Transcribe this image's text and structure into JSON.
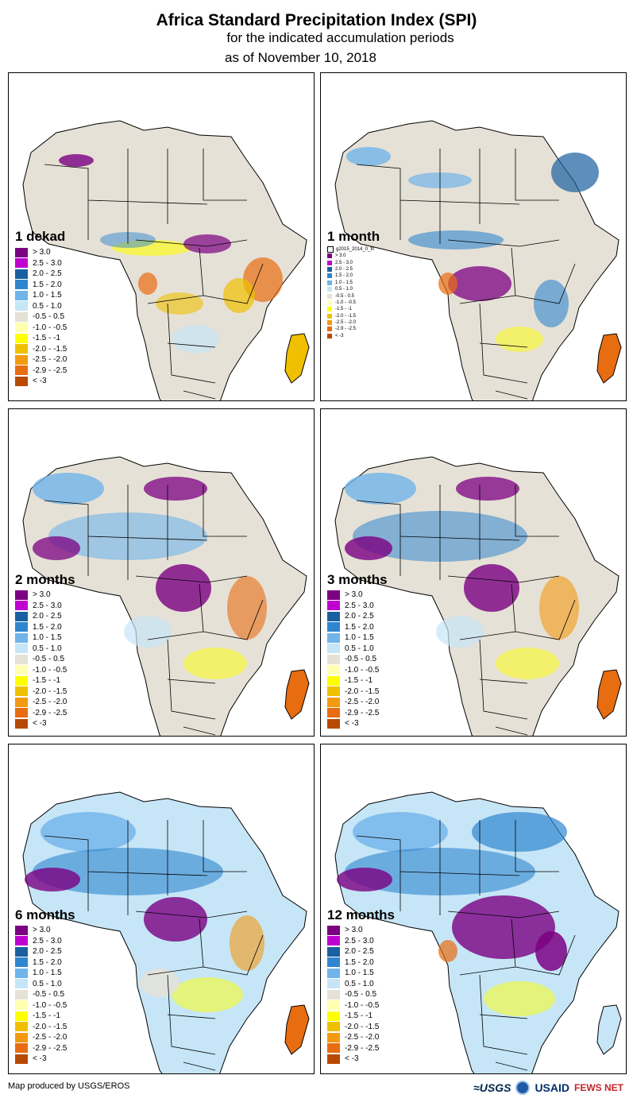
{
  "title": {
    "line1": "Africa Standard Precipitation Index (SPI)",
    "line2": "for the indicated accumulation periods",
    "line3": "as of November 10, 2018"
  },
  "legend": [
    {
      "label": "> 3.0",
      "color": "#7b0082"
    },
    {
      "label": "2.5 - 3.0",
      "color": "#c000d0"
    },
    {
      "label": "2.0 - 2.5",
      "color": "#1a5fa0"
    },
    {
      "label": "1.5 - 2.0",
      "color": "#2f86cf"
    },
    {
      "label": "1.0 - 1.5",
      "color": "#70b4ea"
    },
    {
      "label": "0.5 - 1.0",
      "color": "#c6e6f7"
    },
    {
      "label": "-0.5 - 0.5",
      "color": "#e6e1d6"
    },
    {
      "label": "-1.0 - -0.5",
      "color": "#ffffb0"
    },
    {
      "label": "-1.5 - -1",
      "color": "#ffff00"
    },
    {
      "label": "-2.0 - -1.5",
      "color": "#f0c000"
    },
    {
      "label": "-2.5 - -2.0",
      "color": "#f39a10"
    },
    {
      "label": "-2.9 - -2.5",
      "color": "#e86c10"
    },
    {
      "label": "< -3",
      "color": "#b84a00"
    }
  ],
  "legend_small_layer": "g2015_2014_0_fn",
  "panels": [
    {
      "label": "1 dekad",
      "small_legend": false
    },
    {
      "label": "1 month",
      "small_legend": true
    },
    {
      "label": "2 months",
      "small_legend": false
    },
    {
      "label": "3 months",
      "small_legend": false
    },
    {
      "label": "6 months",
      "small_legend": false
    },
    {
      "label": "12 months",
      "small_legend": false
    }
  ],
  "credit": "Map produced by USGS/EROS",
  "logos": {
    "usgs": "≈USGS",
    "usaid": "USAID",
    "fews": "FEWS NET"
  },
  "colors": {
    "ocean": "#ffffff",
    "land": "#e6e1d6",
    "border": "#000000"
  }
}
